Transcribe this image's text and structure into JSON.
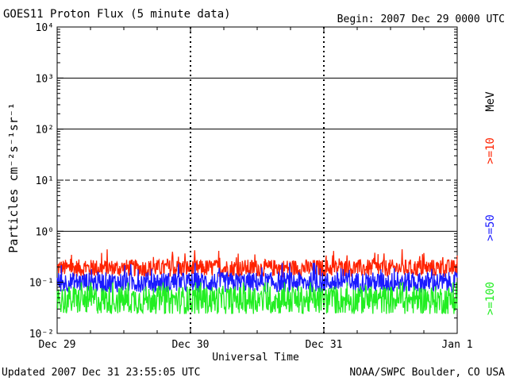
{
  "chart_data": {
    "type": "line",
    "title": "GOES11 Proton Flux (5 minute data)",
    "begin": "Begin: 2007 Dec 29 0000 UTC",
    "xlabel": "Universal Time",
    "ylabel": "Particles cm⁻²s⁻¹sr⁻¹",
    "y_scale": "log",
    "ylim": [
      0.01,
      10000
    ],
    "y_ticks": [
      {
        "value": 0.01,
        "label": "10⁻²"
      },
      {
        "value": 0.1,
        "label": "10⁻¹"
      },
      {
        "value": 1,
        "label": "10⁰"
      },
      {
        "value": 10,
        "label": "10¹"
      },
      {
        "value": 100,
        "label": "10²"
      },
      {
        "value": 1000,
        "label": "10³"
      },
      {
        "value": 10000,
        "label": "10⁴"
      }
    ],
    "x_ticks": [
      "Dec 29",
      "Dec 30",
      "Dec 31",
      "Jan 1"
    ],
    "xlim_days": [
      0,
      3
    ],
    "threshold_lines": [
      {
        "value": 10,
        "style": "dashed"
      },
      {
        "value": 1,
        "style": "solid"
      },
      {
        "value": 100,
        "style": "solid"
      },
      {
        "value": 1000,
        "style": "solid"
      }
    ],
    "right_label_unit": "MeV",
    "series": [
      {
        "name": ">=10",
        "color": "#ff2200",
        "baseline": 0.19,
        "spread": 0.17,
        "min": 0.1,
        "max": 0.7
      },
      {
        "name": ">=50",
        "color": "#1a1aff",
        "baseline": 0.1,
        "spread": 0.2,
        "min": 0.045,
        "max": 0.24
      },
      {
        "name": ">=100",
        "color": "#22ee22",
        "baseline": 0.045,
        "spread": 0.28,
        "min": 0.024,
        "max": 0.1
      }
    ]
  },
  "footer": {
    "updated": "Updated 2007 Dec 31 23:55:05 UTC",
    "credit": "NOAA/SWPC Boulder, CO USA"
  }
}
